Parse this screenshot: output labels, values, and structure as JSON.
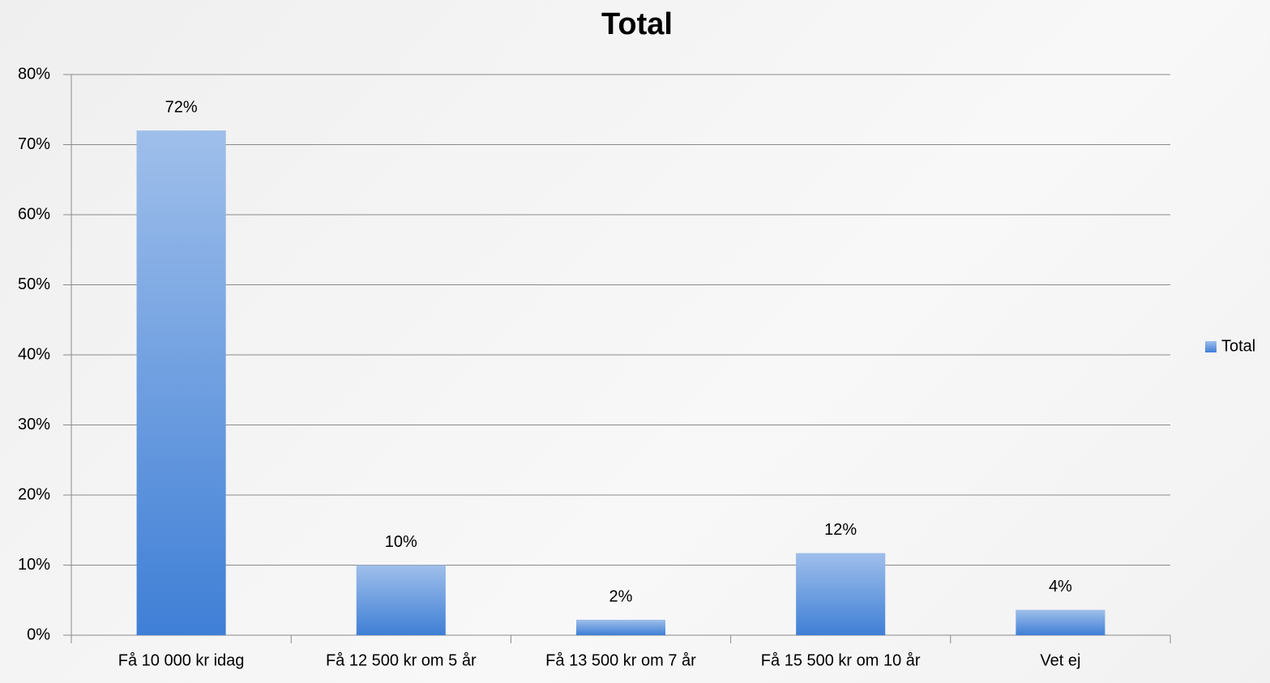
{
  "chart_data": {
    "type": "bar",
    "title": "Total",
    "categories": [
      "Få 10 000 kr idag",
      "Få 12 500 kr om 5 år",
      "Få 13 500 kr om 7 år",
      "Få 15 500 kr om 10 år",
      "Vet ej"
    ],
    "series": [
      {
        "name": "Total",
        "color": "#3f7fd6",
        "values": [
          72,
          10,
          2.2,
          11.7,
          3.6
        ],
        "value_labels": [
          "72%",
          "10%",
          "2%",
          "12%",
          "4%"
        ]
      }
    ],
    "ylim": [
      0,
      80
    ],
    "yticks": [
      {
        "value": 0,
        "label": "0%"
      },
      {
        "value": 10,
        "label": "10%"
      },
      {
        "value": 20,
        "label": "20%"
      },
      {
        "value": 30,
        "label": "30%"
      },
      {
        "value": 40,
        "label": "40%"
      },
      {
        "value": 50,
        "label": "50%"
      },
      {
        "value": 60,
        "label": "60%"
      },
      {
        "value": 70,
        "label": "70%"
      },
      {
        "value": 80,
        "label": "80%"
      }
    ],
    "grid": true,
    "legend": "right"
  }
}
